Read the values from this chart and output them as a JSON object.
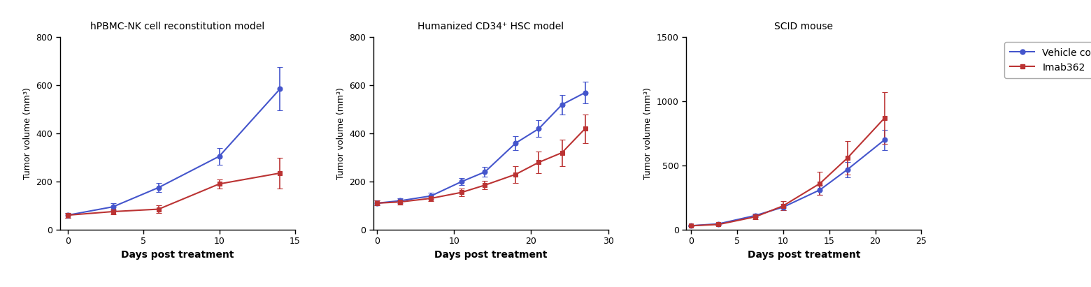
{
  "panel1": {
    "title": "hPBMC-NK cell reconstitution model",
    "xlabel": "Days post treatment",
    "ylabel": "Tumor volume (mm³)",
    "xlim": [
      -0.5,
      15
    ],
    "ylim": [
      0,
      800
    ],
    "xticks": [
      0,
      5,
      10,
      15
    ],
    "yticks": [
      0,
      200,
      400,
      600,
      800
    ],
    "vehicle_x": [
      0,
      3,
      6,
      10,
      14
    ],
    "vehicle_y": [
      60,
      95,
      175,
      305,
      585
    ],
    "vehicle_yerr": [
      10,
      15,
      20,
      35,
      90
    ],
    "imab_x": [
      0,
      3,
      6,
      10,
      14
    ],
    "imab_y": [
      60,
      75,
      85,
      190,
      235
    ],
    "imab_yerr": [
      10,
      12,
      15,
      20,
      65
    ]
  },
  "panel2": {
    "title": "Humanized CD34⁺ HSC model",
    "xlabel": "Days post treatment",
    "ylabel": "Tumor volume (mm³)",
    "xlim": [
      -0.5,
      30
    ],
    "ylim": [
      0,
      800
    ],
    "xticks": [
      0,
      10,
      20,
      30
    ],
    "yticks": [
      0,
      200,
      400,
      600,
      800
    ],
    "vehicle_x": [
      0,
      3,
      7,
      11,
      14,
      18,
      21,
      24,
      27
    ],
    "vehicle_y": [
      110,
      120,
      140,
      200,
      240,
      360,
      420,
      520,
      570
    ],
    "vehicle_yerr": [
      10,
      10,
      12,
      15,
      20,
      30,
      35,
      40,
      45
    ],
    "imab_x": [
      0,
      3,
      7,
      11,
      14,
      18,
      21,
      24,
      27
    ],
    "imab_y": [
      110,
      115,
      130,
      155,
      185,
      230,
      280,
      320,
      420
    ],
    "imab_yerr": [
      10,
      10,
      12,
      15,
      18,
      35,
      45,
      55,
      60
    ]
  },
  "panel3": {
    "title": "SCID mouse",
    "xlabel": "Days post treatment",
    "ylabel": "Tumor volume (mm³)",
    "xlim": [
      -0.5,
      25
    ],
    "ylim": [
      0,
      1500
    ],
    "xticks": [
      0,
      5,
      10,
      15,
      20,
      25
    ],
    "yticks": [
      0,
      500,
      1000,
      1500
    ],
    "vehicle_x": [
      0,
      3,
      7,
      10,
      14,
      17,
      21
    ],
    "vehicle_y": [
      30,
      45,
      110,
      175,
      310,
      470,
      700
    ],
    "vehicle_yerr": [
      5,
      8,
      15,
      25,
      40,
      60,
      80
    ],
    "imab_x": [
      0,
      3,
      7,
      10,
      14,
      17,
      21
    ],
    "imab_y": [
      30,
      40,
      100,
      185,
      360,
      560,
      870
    ],
    "imab_yerr": [
      5,
      8,
      20,
      35,
      90,
      130,
      200
    ]
  },
  "vehicle_color": "#4455cc",
  "imab_color": "#bb3333",
  "vehicle_label": "Vehicle control",
  "imab_label": "Imab362",
  "marker_vehicle": "o",
  "marker_imab": "s",
  "linewidth": 1.5,
  "markersize": 5,
  "capsize": 3,
  "elinewidth": 1.2,
  "background_color": "#ffffff",
  "title_fontsize": 10,
  "axis_label_fontsize": 10,
  "tick_fontsize": 9,
  "legend_fontsize": 10
}
